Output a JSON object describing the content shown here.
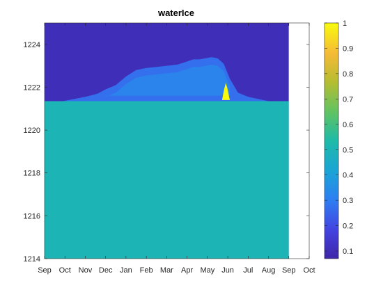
{
  "chart_data": {
    "type": "heatmap",
    "title": "waterIce",
    "xlabel": "",
    "ylabel": "",
    "x_tick_labels": [
      "Sep",
      "Oct",
      "Nov",
      "Dec",
      "Jan",
      "Feb",
      "Mar",
      "Apr",
      "May",
      "Jun",
      "Jul",
      "Aug",
      "Sep",
      "Oct"
    ],
    "x_range_months": [
      0,
      13
    ],
    "data_end_month": 12,
    "y_tick_labels": [
      "1214",
      "1216",
      "1218",
      "1220",
      "1222",
      "1224"
    ],
    "y_ticks": [
      1214,
      1216,
      1218,
      1220,
      1222,
      1224
    ],
    "ylim": [
      1214,
      1225
    ],
    "colorbar": {
      "colormap": "parula",
      "clim": [
        0.07,
        1
      ],
      "tick_labels": [
        "0.1",
        "0.2",
        "0.3",
        "0.4",
        "0.5",
        "0.6",
        "0.7",
        "0.8",
        "0.9",
        "1"
      ],
      "ticks": [
        0.1,
        0.2,
        0.3,
        0.4,
        0.5,
        0.6,
        0.7,
        0.8,
        0.9,
        1.0
      ]
    },
    "regions": {
      "air_value": 0.1,
      "ground_value": 0.5,
      "ground_surface_elevation": 1221.35,
      "snow_value": 0.27,
      "snow_layer_value": 0.33,
      "melt_peak_value": 1.0,
      "melt_peak_month": 8.9,
      "melt_peak_top_elevation": 1222.2
    },
    "snow_surface_profile": {
      "months": [
        0.9,
        2.0,
        2.6,
        3.0,
        3.5,
        4.0,
        4.5,
        5.0,
        5.5,
        6.0,
        6.5,
        7.0,
        7.3,
        7.6,
        7.9,
        8.2,
        8.5,
        8.8,
        9.1,
        9.5,
        10.0,
        10.5,
        11.0
      ],
      "elevations": [
        1221.35,
        1221.55,
        1221.7,
        1221.9,
        1222.1,
        1222.5,
        1222.8,
        1222.9,
        1222.95,
        1223.0,
        1223.05,
        1223.2,
        1223.3,
        1223.3,
        1223.35,
        1223.4,
        1223.35,
        1223.1,
        1222.4,
        1221.75,
        1221.55,
        1221.45,
        1221.35
      ]
    },
    "grid": false,
    "legend": "none"
  }
}
